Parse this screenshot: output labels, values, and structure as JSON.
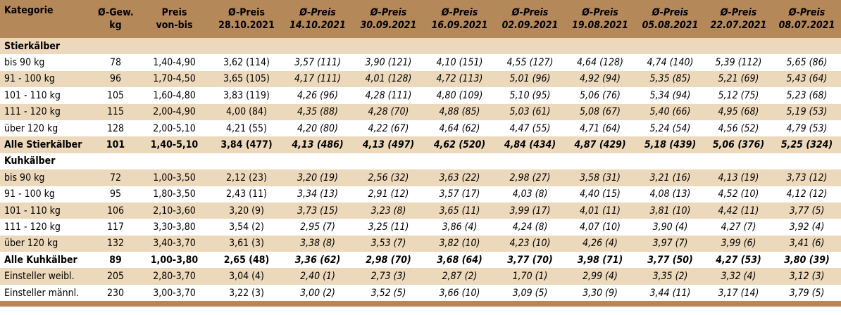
{
  "headers": [
    {
      "line1": "Kategorie",
      "line2": ""
    },
    {
      "line1": "Ø-Gew.",
      "line2": "kg"
    },
    {
      "line1": "Preis",
      "line2": "von-bis"
    },
    {
      "line1": "Ø-Preis",
      "line2": "28.10.2021"
    },
    {
      "line1": "Ø-Preis",
      "line2": "14.10.2021"
    },
    {
      "line1": "Ø-Preis",
      "line2": "30.09.2021"
    },
    {
      "line1": "Ø-Preis",
      "line2": "16.09.2021"
    },
    {
      "line1": "Ø-Preis",
      "line2": "02.09.2021"
    },
    {
      "line1": "Ø-Preis",
      "line2": "19.08.2021"
    },
    {
      "line1": "Ø-Preis",
      "line2": "05.08.2021"
    },
    {
      "line1": "Ø-Preis",
      "line2": "22.07.2021"
    },
    {
      "line1": "Ø-Preis",
      "line2": "08.07.2021"
    }
  ],
  "rows": [
    {
      "type": "section",
      "cells": [
        "Stierkälber"
      ]
    },
    {
      "type": "data",
      "cells": [
        "bis 90 kg",
        "78",
        "1,40-4,90",
        "3,62 (114)",
        "3,57 (111)",
        "3,90 (121)",
        "4,10 (151)",
        "4,55 (127)",
        "4,64 (128)",
        "4,74 (140)",
        "5,39 (112)",
        "5,65 (86)"
      ]
    },
    {
      "type": "data",
      "cells": [
        "91 - 100 kg",
        "96",
        "1,70-4,50",
        "3,65 (105)",
        "4,17 (111)",
        "4,01 (128)",
        "4,72 (113)",
        "5,01 (96)",
        "4,92 (94)",
        "5,35 (85)",
        "5,21 (69)",
        "5,43 (64)"
      ]
    },
    {
      "type": "data",
      "cells": [
        "101 - 110 kg",
        "105",
        "1,60-4,80",
        "3,83 (119)",
        "4,26 (96)",
        "4,28 (111)",
        "4,80 (109)",
        "5,10 (95)",
        "5,06 (76)",
        "5,34 (94)",
        "5,12 (75)",
        "5,23 (68)"
      ]
    },
    {
      "type": "data",
      "cells": [
        "111 - 120 kg",
        "115",
        "2,00-4,90",
        "4,00 (84)",
        "4,35 (88)",
        "4,28 (70)",
        "4,88 (85)",
        "5,03 (61)",
        "5,08 (67)",
        "5,40 (66)",
        "4,95 (68)",
        "5,19 (53)"
      ]
    },
    {
      "type": "data",
      "cells": [
        "über 120 kg",
        "128",
        "2,00-5,10",
        "4,21 (55)",
        "4,20 (80)",
        "4,22 (67)",
        "4,64 (62)",
        "4,47 (55)",
        "4,71 (64)",
        "5,24 (54)",
        "4,56 (52)",
        "4,79 (53)"
      ]
    },
    {
      "type": "total",
      "cells": [
        "Alle Stierkälber",
        "101",
        "1,40-5,10",
        "3,84 (477)",
        "4,13 (486)",
        "4,13 (497)",
        "4,62 (520)",
        "4,84 (434)",
        "4,87 (429)",
        "5,18 (439)",
        "5,06 (376)",
        "5,25 (324)"
      ]
    },
    {
      "type": "section",
      "cells": [
        "Kuhkälber"
      ]
    },
    {
      "type": "data",
      "cells": [
        "bis 90 kg",
        "72",
        "1,00-3,50",
        "2,12 (23)",
        "3,20 (19)",
        "2,56 (32)",
        "3,63 (22)",
        "2,98 (27)",
        "3,58 (31)",
        "3,21 (16)",
        "4,13 (19)",
        "3,73 (12)"
      ]
    },
    {
      "type": "data",
      "cells": [
        "91 - 100 kg",
        "95",
        "1,80-3,50",
        "2,43 (11)",
        "3,34 (13)",
        "2,91 (12)",
        "3,57 (17)",
        "4,03 (8)",
        "4,40 (15)",
        "4,08 (13)",
        "4,52 (10)",
        "4,12 (12)"
      ]
    },
    {
      "type": "data",
      "cells": [
        "101 - 110 kg",
        "106",
        "2,10-3,60",
        "3,20 (9)",
        "3,73 (15)",
        "3,23 (8)",
        "3,65 (11)",
        "3,99 (17)",
        "4,01 (11)",
        "3,81 (10)",
        "4,42 (11)",
        "3,77 (5)"
      ]
    },
    {
      "type": "data",
      "cells": [
        "111 - 120 kg",
        "117",
        "3,30-3,80",
        "3,54 (2)",
        "2,95 (7)",
        "3,25 (11)",
        "3,86 (4)",
        "4,24 (8)",
        "4,07 (10)",
        "3,90 (4)",
        "4,27 (7)",
        "3,92 (4)"
      ]
    },
    {
      "type": "data",
      "cells": [
        "über 120 kg",
        "132",
        "3,40-3,70",
        "3,61 (3)",
        "3,38 (8)",
        "3,53 (7)",
        "3,82 (10)",
        "4,23 (10)",
        "4,26 (4)",
        "3,97 (7)",
        "3,99 (6)",
        "3,41 (6)"
      ]
    },
    {
      "type": "total",
      "cells": [
        "Alle Kuhkälber",
        "89",
        "1,00-3,80",
        "2,65 (48)",
        "3,36 (62)",
        "2,98 (70)",
        "3,68 (64)",
        "3,77 (70)",
        "3,98 (71)",
        "3,77 (50)",
        "4,27 (53)",
        "3,80 (39)"
      ]
    },
    {
      "type": "data",
      "cells": [
        "Einsteller weibl.",
        "205",
        "2,80-3,70",
        "3,04 (4)",
        "2,40 (1)",
        "2,73 (3)",
        "2,87 (2)",
        "1,70 (1)",
        "2,99 (4)",
        "3,35 (2)",
        "3,32 (4)",
        "3,12 (3)"
      ]
    },
    {
      "type": "data",
      "cells": [
        "Einsteller männl.",
        "230",
        "3,00-3,70",
        "3,22 (3)",
        "3,00 (2)",
        "3,52 (5)",
        "3,66 (10)",
        "3,09 (5)",
        "3,30 (9)",
        "3,44 (11)",
        "3,17 (14)",
        "3,79 (5)"
      ]
    }
  ]
}
